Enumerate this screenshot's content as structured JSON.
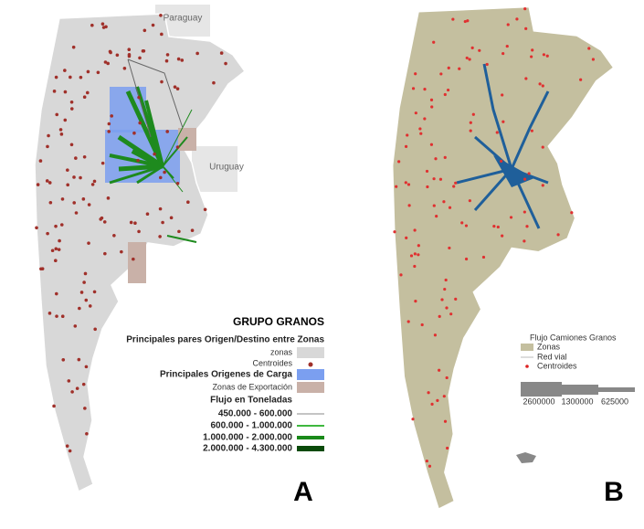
{
  "panel_a": {
    "countries": [
      "Paraguay",
      "Uruguay"
    ],
    "title": "GRUPO GRANOS",
    "subtitle": "Principales pares Origen/Destino entre Zonas",
    "legend": [
      "zonas",
      "Centroides",
      "Principales Origenes de Carga",
      "Zonas de Exportación"
    ],
    "flow_title": "Flujo en Toneladas",
    "flow_classes": [
      "450.000 - 600.000",
      "600.000 - 1.000.000",
      "1.000.000 - 2.000.000",
      "2.000.000 - 4.300.000"
    ],
    "label": "A"
  },
  "panel_b": {
    "title": "Flujo Camiones Granos",
    "legend": [
      "Zonas",
      "Red vial",
      "Centroides"
    ],
    "scale": [
      2600000,
      1300000,
      625000
    ],
    "label": "B"
  }
}
